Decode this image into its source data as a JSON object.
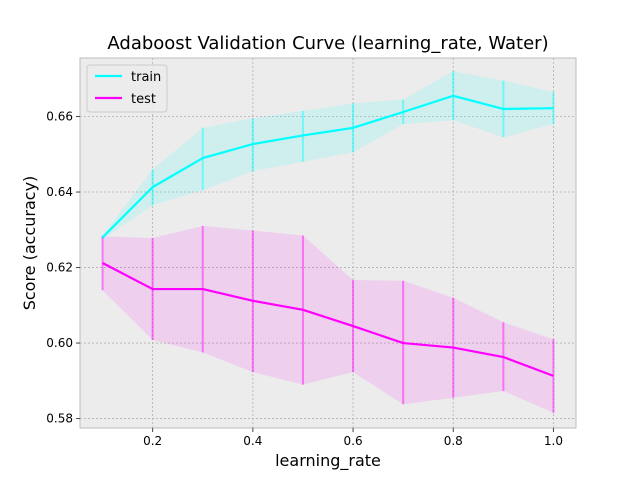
{
  "chart_data": {
    "type": "line",
    "title": "Adaboost Validation Curve (learning_rate, Water)",
    "xlabel": "learning_rate",
    "ylabel": "Score (accuracy)",
    "x": [
      0.1,
      0.2,
      0.3,
      0.4,
      0.5,
      0.6,
      0.7,
      0.8,
      0.9,
      1.0
    ],
    "xlim": [
      0.055,
      1.045
    ],
    "ylim": [
      0.5775,
      0.6755
    ],
    "xticks": [
      0.2,
      0.4,
      0.6,
      0.8,
      1.0
    ],
    "xtick_labels": [
      "0.2",
      "0.4",
      "0.6",
      "0.8",
      "1.0"
    ],
    "yticks": [
      0.58,
      0.6,
      0.62,
      0.64,
      0.66
    ],
    "ytick_labels": [
      "0.58",
      "0.60",
      "0.62",
      "0.64",
      "0.66"
    ],
    "grid": true,
    "legend_position": "top-left",
    "series": [
      {
        "name": "train",
        "color": "#00ffff",
        "values": [
          0.628,
          0.6413,
          0.649,
          0.6527,
          0.655,
          0.657,
          0.6612,
          0.6655,
          0.662,
          0.6622
        ],
        "lower": [
          0.6275,
          0.6365,
          0.6405,
          0.6455,
          0.648,
          0.6505,
          0.658,
          0.659,
          0.6545,
          0.658
        ],
        "upper": [
          0.6285,
          0.646,
          0.657,
          0.6595,
          0.6615,
          0.6635,
          0.6645,
          0.672,
          0.6695,
          0.6665
        ]
      },
      {
        "name": "test",
        "color": "#ff00ff",
        "values": [
          0.6212,
          0.6143,
          0.6143,
          0.6112,
          0.6088,
          0.6045,
          0.6,
          0.5988,
          0.5963,
          0.5913
        ],
        "lower": [
          0.614,
          0.6008,
          0.5975,
          0.5923,
          0.589,
          0.5923,
          0.5838,
          0.5855,
          0.5873,
          0.5815
        ],
        "upper": [
          0.6283,
          0.6278,
          0.631,
          0.6298,
          0.6285,
          0.6167,
          0.6165,
          0.612,
          0.6055,
          0.601
        ]
      }
    ]
  }
}
